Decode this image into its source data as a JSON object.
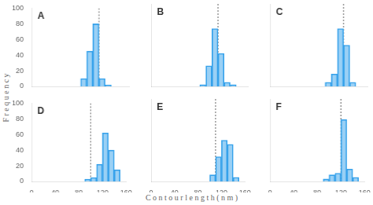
{
  "chart_data": [
    {
      "type": "histogram",
      "title": "A",
      "bins": [
        80,
        90,
        100,
        110,
        120,
        130
      ],
      "values": [
        10,
        45,
        80,
        10,
        2
      ],
      "vline_x": 110,
      "xlim": [
        0,
        160
      ],
      "ylim": [
        0,
        100
      ],
      "xticks": [
        0,
        40,
        80,
        120,
        160
      ],
      "yticks": [
        0,
        20,
        40,
        60,
        80,
        100
      ],
      "grid": false,
      "tick_labels": "y",
      "ylabel": "F r e q u e n c y"
    },
    {
      "type": "histogram",
      "title": "B",
      "bins": [
        80,
        90,
        100,
        110,
        120,
        130,
        140
      ],
      "values": [
        2,
        25,
        70,
        40,
        5,
        2
      ],
      "vline_x": 110,
      "xlim": [
        0,
        160
      ],
      "ylim": [
        0,
        100
      ],
      "xticks": [
        0,
        40,
        80,
        120,
        160
      ],
      "yticks": [
        0,
        20,
        40,
        60,
        80,
        100
      ],
      "grid": false,
      "tick_labels": false
    },
    {
      "type": "histogram",
      "title": "C",
      "bins": [
        90,
        100,
        110,
        120,
        130,
        140
      ],
      "values": [
        5,
        15,
        70,
        50,
        5
      ],
      "vline_x": 120,
      "xlim": [
        0,
        160
      ],
      "ylim": [
        0,
        100
      ],
      "xticks": [
        0,
        40,
        80,
        120,
        160
      ],
      "yticks": [
        0,
        20,
        40,
        60,
        80,
        100
      ],
      "grid": false,
      "tick_labels": false
    },
    {
      "type": "histogram",
      "title": "D",
      "bins": [
        90,
        100,
        110,
        120,
        130,
        140,
        150
      ],
      "values": [
        3,
        5,
        22,
        62,
        40,
        15
      ],
      "vline_x": 100,
      "xlim": [
        0,
        160
      ],
      "ylim": [
        0,
        100
      ],
      "xticks": [
        0,
        40,
        80,
        120,
        160
      ],
      "yticks": [
        0,
        20,
        40,
        60,
        80,
        100
      ],
      "grid": false,
      "tick_labels": true
    },
    {
      "type": "histogram",
      "title": "E",
      "bins": [
        100,
        110,
        120,
        130,
        140,
        150
      ],
      "values": [
        8,
        30,
        50,
        45,
        5
      ],
      "vline_x": 110,
      "xlim": [
        0,
        160
      ],
      "ylim": [
        0,
        100
      ],
      "xticks": [
        0,
        40,
        80,
        120,
        160
      ],
      "yticks": [
        0,
        20,
        40,
        60,
        80,
        100
      ],
      "grid": false,
      "tick_labels": "x",
      "xlabel": "C o n t o u r   l e n g t h  ( n m )"
    },
    {
      "type": "histogram",
      "title": "F",
      "bins": [
        90,
        100,
        110,
        120,
        130,
        140,
        150
      ],
      "values": [
        3,
        8,
        10,
        75,
        15,
        5
      ],
      "vline_x": 120,
      "xlim": [
        0,
        160
      ],
      "ylim": [
        0,
        100
      ],
      "xticks": [
        0,
        40,
        80,
        120,
        160
      ],
      "yticks": [
        0,
        20,
        40,
        60,
        80,
        100
      ],
      "grid": false,
      "tick_labels": "x"
    }
  ]
}
